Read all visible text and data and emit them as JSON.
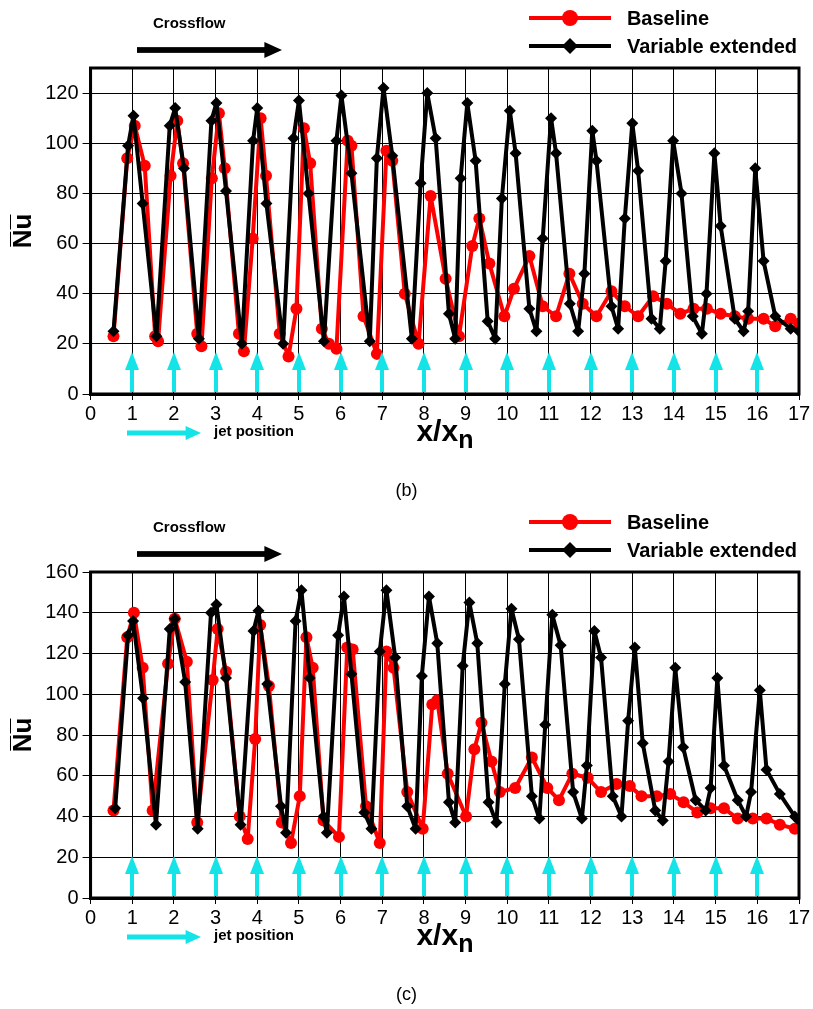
{
  "chart_data": [
    {
      "type": "line",
      "xlabel": "x/x$_{n}$",
      "ylabel": "N̅u̅",
      "xlim": [
        0,
        17
      ],
      "ylim": [
        0,
        130
      ],
      "xticks": [
        0,
        1,
        2,
        3,
        4,
        5,
        6,
        7,
        8,
        9,
        10,
        11,
        12,
        13,
        14,
        15,
        16,
        17
      ],
      "yticks": [
        0,
        20,
        40,
        60,
        80,
        100,
        120
      ],
      "grid": true,
      "legend": "top right",
      "line_style": "solid",
      "annotations": [
        "Crossflow",
        "jet position",
        "(b)"
      ],
      "series": [
        {
          "name": "Baseline",
          "color": "#ff0000",
          "marker": "circle",
          "x": [
            0.55,
            0.88,
            1.06,
            1.3,
            1.55,
            1.62,
            1.92,
            2.08,
            2.22,
            2.56,
            2.66,
            2.91,
            3.08,
            3.22,
            3.56,
            3.68,
            3.89,
            4.08,
            4.21,
            4.54,
            4.75,
            4.94,
            5.12,
            5.27,
            5.55,
            5.72,
            5.9,
            6.17,
            6.26,
            6.55,
            6.87,
            7.1,
            7.24,
            7.54,
            7.87,
            8.16,
            8.52,
            8.84,
            9.16,
            9.33,
            9.57,
            9.93,
            10.16,
            10.53,
            10.85,
            11.17,
            11.49,
            11.81,
            12.14,
            12.5,
            12.82,
            13.14,
            13.5,
            13.83,
            14.15,
            14.47,
            14.79,
            15.12,
            15.46,
            15.78,
            16.15,
            16.43,
            16.8,
            17
          ],
          "values": [
            23,
            94,
            107,
            91,
            23,
            21,
            87,
            109,
            92,
            24,
            19,
            86,
            112,
            90,
            24,
            17,
            62,
            110,
            87,
            24,
            15,
            34,
            106,
            92,
            26,
            20,
            18,
            101,
            99,
            31,
            16,
            97,
            93,
            40,
            20,
            79,
            46,
            23,
            59,
            70,
            52,
            31,
            42,
            55,
            35,
            31,
            48,
            36,
            31,
            41,
            35,
            31,
            39,
            36,
            32,
            34,
            34,
            32,
            31,
            30,
            30,
            27,
            30,
            28
          ]
        },
        {
          "name": "Variable extended",
          "color": "#000000",
          "marker": "diamond",
          "x": [
            0.55,
            0.9,
            1.03,
            1.25,
            1.58,
            1.9,
            2.03,
            2.24,
            2.6,
            2.9,
            3.02,
            3.25,
            3.63,
            3.9,
            4.0,
            4.22,
            4.62,
            4.87,
            5.0,
            5.23,
            5.6,
            5.9,
            6.02,
            6.26,
            6.7,
            6.87,
            7.03,
            7.24,
            7.71,
            7.92,
            8.08,
            8.28,
            8.6,
            8.75,
            8.88,
            9.04,
            9.24,
            9.53,
            9.71,
            9.87,
            10.06,
            10.2,
            10.53,
            10.7,
            10.85,
            11.05,
            11.17,
            11.5,
            11.7,
            11.85,
            12.04,
            12.14,
            12.5,
            12.66,
            12.82,
            13.0,
            13.14,
            13.46,
            13.66,
            13.8,
            13.98,
            14.18,
            14.45,
            14.67,
            14.78,
            14.97,
            15.12,
            15.46,
            15.67,
            15.78,
            15.95,
            16.15,
            16.43,
            16.8,
            17
          ],
          "values": [
            25,
            99,
            111,
            76,
            23,
            107,
            114,
            90,
            22,
            109,
            116,
            81,
            20,
            101,
            114,
            76,
            20,
            102,
            117,
            80,
            21,
            101,
            119,
            88,
            21,
            94,
            122,
            95,
            22,
            84,
            120,
            102,
            32,
            22,
            86,
            116,
            93,
            29,
            22,
            78,
            113,
            96,
            34,
            25,
            62,
            110,
            96,
            36,
            25,
            48,
            105,
            93,
            35,
            26,
            70,
            108,
            89,
            30,
            26,
            53,
            101,
            80,
            31,
            24,
            40,
            96,
            67,
            30,
            25,
            33,
            90,
            53,
            31,
            26,
            25
          ]
        }
      ]
    },
    {
      "type": "line",
      "xlabel": "x/x$_{n}$",
      "ylabel": "N̅u̅",
      "xlim": [
        0,
        17
      ],
      "ylim": [
        0,
        160
      ],
      "xticks": [
        0,
        1,
        2,
        3,
        4,
        5,
        6,
        7,
        8,
        9,
        10,
        11,
        12,
        13,
        14,
        15,
        16,
        17
      ],
      "yticks": [
        0,
        20,
        40,
        60,
        80,
        100,
        120,
        140,
        160
      ],
      "grid": true,
      "legend": "top right",
      "line_style": "solid",
      "annotations": [
        "Crossflow",
        "jet position",
        "(c)"
      ],
      "series": [
        {
          "name": "Baseline",
          "color": "#ff0000",
          "marker": "circle",
          "x": [
            0.55,
            0.88,
            1.04,
            1.25,
            1.49,
            1.86,
            2.02,
            2.31,
            2.56,
            2.93,
            3.05,
            3.25,
            3.58,
            3.77,
            3.95,
            4.07,
            4.28,
            4.59,
            4.81,
            5.02,
            5.18,
            5.33,
            5.59,
            5.96,
            6.16,
            6.29,
            6.61,
            6.94,
            7.1,
            7.27,
            7.6,
            7.97,
            8.2,
            8.32,
            8.57,
            9.01,
            9.21,
            9.38,
            9.62,
            9.82,
            10.19,
            10.59,
            10.96,
            11.24,
            11.56,
            11.93,
            12.25,
            12.62,
            12.94,
            13.22,
            13.59,
            13.91,
            14.23,
            14.56,
            14.88,
            15.2,
            15.53,
            15.89,
            16.22,
            16.54,
            16.9
          ],
          "values": [
            43,
            128,
            140,
            113,
            43,
            115,
            137,
            116,
            37,
            107,
            132,
            111,
            40,
            29,
            78,
            134,
            104,
            37,
            27,
            50,
            128,
            113,
            38,
            30,
            123,
            122,
            45,
            27,
            121,
            113,
            52,
            34,
            95,
            97,
            61,
            40,
            73,
            86,
            67,
            52,
            54,
            69,
            54,
            48,
            61,
            59,
            52,
            56,
            55,
            50,
            50,
            51,
            47,
            42,
            44,
            44,
            39,
            39,
            39,
            36,
            34
          ]
        },
        {
          "name": "Variable extended",
          "color": "#000000",
          "marker": "diamond",
          "x": [
            0.59,
            0.9,
            1.02,
            1.26,
            1.57,
            1.9,
            2.02,
            2.27,
            2.57,
            2.89,
            3.02,
            3.25,
            3.6,
            3.91,
            4.03,
            4.24,
            4.57,
            4.69,
            4.92,
            5.06,
            5.26,
            5.59,
            5.67,
            5.94,
            6.08,
            6.26,
            6.57,
            6.74,
            6.94,
            7.1,
            7.31,
            7.6,
            7.8,
            7.95,
            8.12,
            8.32,
            8.6,
            8.75,
            8.93,
            9.09,
            9.28,
            9.55,
            9.74,
            9.94,
            10.1,
            10.28,
            10.59,
            10.77,
            10.91,
            11.08,
            11.28,
            11.58,
            11.79,
            11.91,
            12.09,
            12.25,
            12.53,
            12.74,
            12.9,
            13.06,
            13.25,
            13.55,
            13.73,
            13.87,
            14.03,
            14.22,
            14.52,
            14.76,
            14.88,
            15.04,
            15.2,
            15.53,
            15.73,
            15.85,
            16.06,
            16.22,
            16.54,
            16.9,
            17
          ],
          "values": [
            44,
            129,
            136,
            98,
            36,
            132,
            137,
            106,
            34,
            140,
            144,
            108,
            36,
            131,
            141,
            105,
            45,
            32,
            136,
            151,
            108,
            40,
            32,
            129,
            148,
            110,
            42,
            34,
            121,
            151,
            118,
            45,
            34,
            109,
            148,
            125,
            47,
            37,
            114,
            145,
            125,
            47,
            37,
            105,
            142,
            127,
            50,
            39,
            85,
            139,
            124,
            52,
            39,
            65,
            131,
            118,
            50,
            40,
            87,
            123,
            76,
            43,
            38,
            67,
            113,
            74,
            48,
            43,
            54,
            108,
            65,
            48,
            40,
            52,
            102,
            63,
            51,
            40,
            38
          ]
        }
      ]
    }
  ]
}
